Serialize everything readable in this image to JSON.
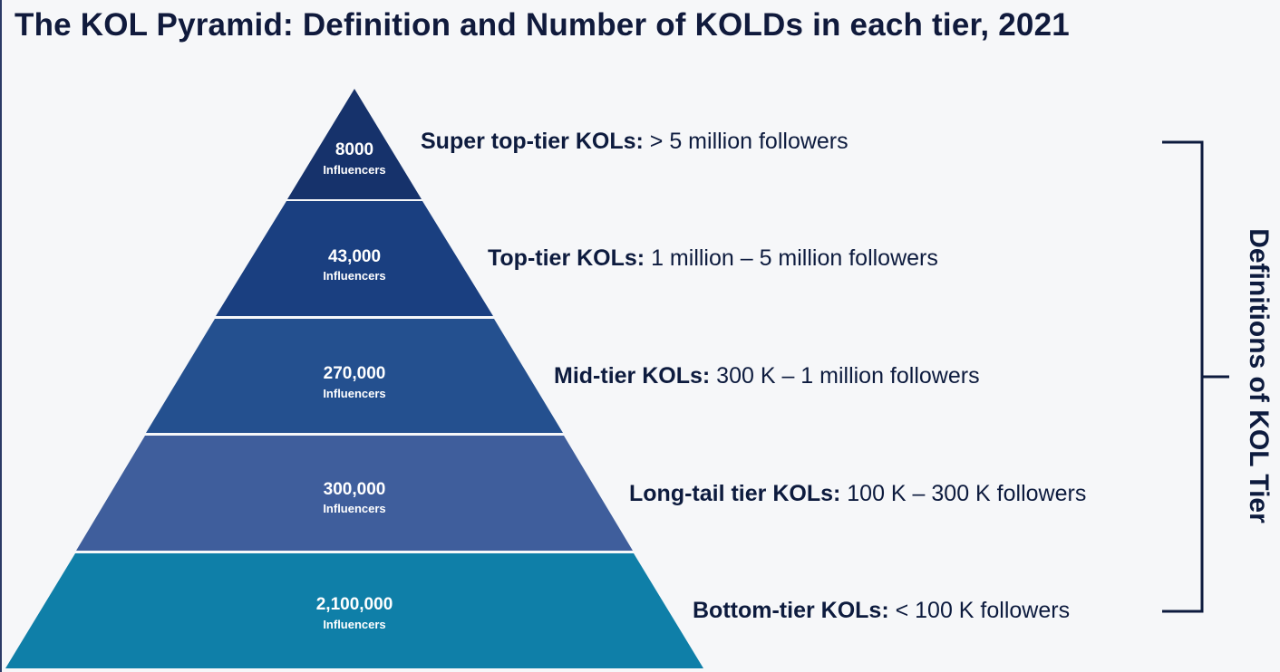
{
  "title": "The KOL Pyramid: Definition and Number of KOLDs in each tier, 2021",
  "colors": {
    "tier1": "#16326b",
    "tier2": "#1a3f80",
    "tier3": "#24508f",
    "tier4": "#3f5e9c",
    "tier5": "#0f7fa8",
    "text": "#0d1b3e"
  },
  "tiers": [
    {
      "count": "8000",
      "unit": "Influencers",
      "name": "Super top-tier KOLs:",
      "range": " > 5 million followers"
    },
    {
      "count": "43,000",
      "unit": "Influencers",
      "name": "Top-tier KOLs:",
      "range": " 1 million – 5 million followers"
    },
    {
      "count": "270,000",
      "unit": "Influencers",
      "name": "Mid-tier KOLs:",
      "range": " 300 K – 1 million followers"
    },
    {
      "count": "300,000",
      "unit": "Influencers",
      "name": "Long-tail tier KOLs:",
      "range": " 100 K – 300 K followers"
    },
    {
      "count": "2,100,000",
      "unit": "Influencers",
      "name": "Bottom-tier KOLs:",
      "range": " < 100 K followers"
    }
  ],
  "bracket_label": "Definitions of KOL Tier"
}
